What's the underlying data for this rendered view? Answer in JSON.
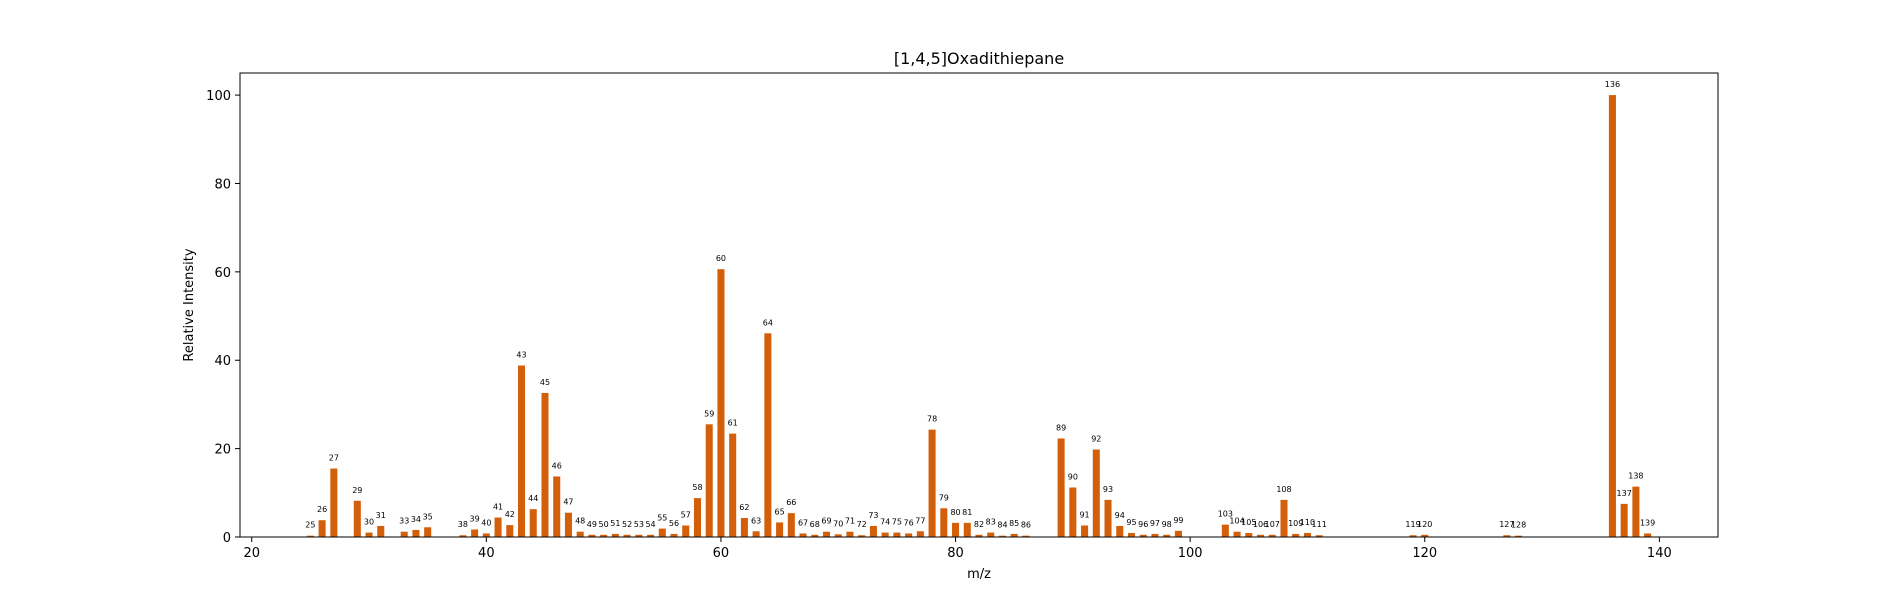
{
  "chart_data": {
    "type": "bar",
    "title": "[1,4,5]Oxadithiepane",
    "xlabel": "m/z",
    "ylabel": "Relative Intensity",
    "xlim": [
      19,
      145
    ],
    "ylim": [
      0,
      105
    ],
    "xticks": [
      20,
      40,
      60,
      80,
      100,
      120,
      140
    ],
    "yticks": [
      0,
      20,
      40,
      60,
      80,
      100
    ],
    "bar_color": "#d35f0b",
    "grid": false,
    "peaks": [
      {
        "x": 25,
        "y": 0.3
      },
      {
        "x": 26,
        "y": 3.8
      },
      {
        "x": 27,
        "y": 15.5
      },
      {
        "x": 29,
        "y": 8.2
      },
      {
        "x": 30,
        "y": 1.0
      },
      {
        "x": 31,
        "y": 2.5
      },
      {
        "x": 33,
        "y": 1.2
      },
      {
        "x": 34,
        "y": 1.6
      },
      {
        "x": 35,
        "y": 2.2
      },
      {
        "x": 38,
        "y": 0.4
      },
      {
        "x": 39,
        "y": 1.7
      },
      {
        "x": 40,
        "y": 0.8
      },
      {
        "x": 41,
        "y": 4.4
      },
      {
        "x": 42,
        "y": 2.7
      },
      {
        "x": 43,
        "y": 38.8
      },
      {
        "x": 44,
        "y": 6.3
      },
      {
        "x": 45,
        "y": 32.6
      },
      {
        "x": 46,
        "y": 13.7
      },
      {
        "x": 47,
        "y": 5.5
      },
      {
        "x": 48,
        "y": 1.2
      },
      {
        "x": 49,
        "y": 0.5
      },
      {
        "x": 50,
        "y": 0.5
      },
      {
        "x": 51,
        "y": 0.7
      },
      {
        "x": 52,
        "y": 0.5
      },
      {
        "x": 53,
        "y": 0.5
      },
      {
        "x": 54,
        "y": 0.5
      },
      {
        "x": 55,
        "y": 1.9
      },
      {
        "x": 56,
        "y": 0.7
      },
      {
        "x": 57,
        "y": 2.6
      },
      {
        "x": 58,
        "y": 8.8
      },
      {
        "x": 59,
        "y": 25.5
      },
      {
        "x": 60,
        "y": 60.6
      },
      {
        "x": 61,
        "y": 23.4
      },
      {
        "x": 62,
        "y": 4.3
      },
      {
        "x": 63,
        "y": 1.3
      },
      {
        "x": 64,
        "y": 46.1
      },
      {
        "x": 65,
        "y": 3.3
      },
      {
        "x": 66,
        "y": 5.4
      },
      {
        "x": 67,
        "y": 0.8
      },
      {
        "x": 68,
        "y": 0.5
      },
      {
        "x": 69,
        "y": 1.2
      },
      {
        "x": 70,
        "y": 0.6
      },
      {
        "x": 71,
        "y": 1.2
      },
      {
        "x": 72,
        "y": 0.4
      },
      {
        "x": 73,
        "y": 2.5
      },
      {
        "x": 74,
        "y": 1.0
      },
      {
        "x": 75,
        "y": 1.0
      },
      {
        "x": 76,
        "y": 0.8
      },
      {
        "x": 77,
        "y": 1.3
      },
      {
        "x": 78,
        "y": 24.3
      },
      {
        "x": 79,
        "y": 6.5
      },
      {
        "x": 80,
        "y": 3.2
      },
      {
        "x": 81,
        "y": 3.2
      },
      {
        "x": 82,
        "y": 0.5
      },
      {
        "x": 83,
        "y": 1.0
      },
      {
        "x": 84,
        "y": 0.3
      },
      {
        "x": 85,
        "y": 0.7
      },
      {
        "x": 86,
        "y": 0.3
      },
      {
        "x": 89,
        "y": 22.3
      },
      {
        "x": 90,
        "y": 11.2
      },
      {
        "x": 91,
        "y": 2.6
      },
      {
        "x": 92,
        "y": 19.8
      },
      {
        "x": 93,
        "y": 8.4
      },
      {
        "x": 94,
        "y": 2.5
      },
      {
        "x": 95,
        "y": 0.9
      },
      {
        "x": 96,
        "y": 0.5
      },
      {
        "x": 97,
        "y": 0.7
      },
      {
        "x": 98,
        "y": 0.5
      },
      {
        "x": 99,
        "y": 1.4
      },
      {
        "x": 103,
        "y": 2.8
      },
      {
        "x": 104,
        "y": 1.2
      },
      {
        "x": 105,
        "y": 0.9
      },
      {
        "x": 106,
        "y": 0.5
      },
      {
        "x": 107,
        "y": 0.5
      },
      {
        "x": 108,
        "y": 8.4
      },
      {
        "x": 109,
        "y": 0.7
      },
      {
        "x": 110,
        "y": 0.9
      },
      {
        "x": 111,
        "y": 0.4
      },
      {
        "x": 119,
        "y": 0.4
      },
      {
        "x": 120,
        "y": 0.5
      },
      {
        "x": 127,
        "y": 0.4
      },
      {
        "x": 128,
        "y": 0.3
      },
      {
        "x": 136,
        "y": 100.0
      },
      {
        "x": 137,
        "y": 7.5
      },
      {
        "x": 138,
        "y": 11.4
      },
      {
        "x": 139,
        "y": 0.8
      }
    ]
  }
}
